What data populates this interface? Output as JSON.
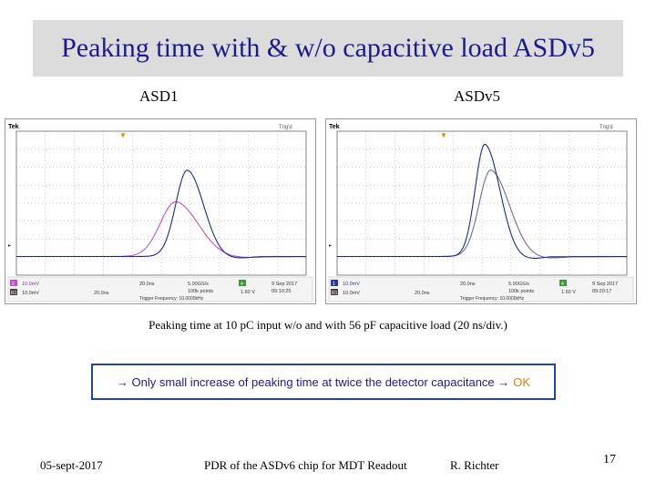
{
  "slide": {
    "title": "Peaking time with & w/o capacitive load ASDv5",
    "caption": "Peaking time at 10 pC  input w/o and with 56 pF capacitive load (20 ns/div.)",
    "note_text": "Only small increase of peaking time at twice the detector capacitance",
    "note_ok": "OK",
    "arrow_glyph": "→",
    "footer_date": "05-sept-2017",
    "footer_center": "PDR of the ASDv6 chip for MDT Readout",
    "footer_author": "R. Richter",
    "page_number": "17"
  },
  "scopes": [
    {
      "label": "ASD1",
      "header_left": "Tek",
      "header_right": "Trig'd",
      "ch1": "10.0mV",
      "ch2": "10.0mV",
      "timebase": "20.0ns",
      "sample_rate": "5.00GS/s",
      "points": "100k points",
      "trigger_level": "1.60 V",
      "date": "9 Sep 2017",
      "time": "09:10:25",
      "trigger_frequency": "Trigger Frequency: 10.0000kHz",
      "colors": {
        "trace_a": "#1e2a8c",
        "trace_b": "#c050c8"
      }
    },
    {
      "label": "ASDv5",
      "header_left": "Tek",
      "header_right": "Trig'd",
      "ch1": "10.0mV",
      "ch2": "10.0mV",
      "timebase": "20.0ns",
      "sample_rate": "5.00GS/s",
      "points": "100k points",
      "trigger_level": "1.60 V",
      "date": "9 Sep 2017",
      "time": "09:20:17",
      "trigger_frequency": "Trigger Frequency: 10.0000kHz",
      "colors": {
        "trace_a": "#1e2a8c",
        "trace_b": "#6a6aa8"
      }
    }
  ]
}
